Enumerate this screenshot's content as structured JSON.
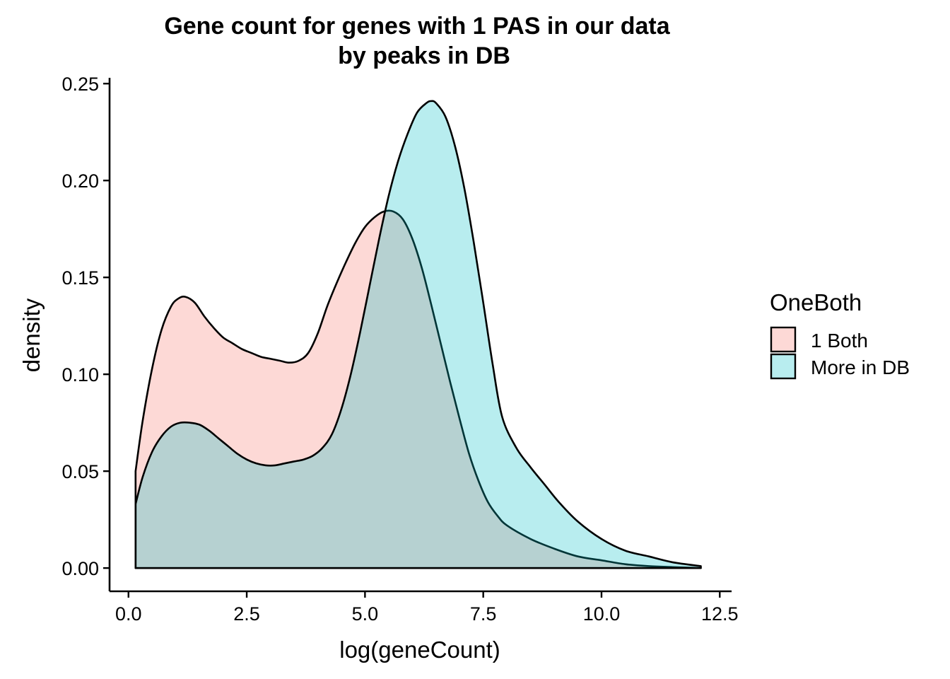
{
  "chart_data": {
    "type": "area",
    "title_lines": [
      "Gene count for genes with 1 PAS in our data",
      "by peaks in DB"
    ],
    "xlabel": "log(geneCount)",
    "ylabel": "density",
    "xlim": [
      -0.4,
      12.75
    ],
    "ylim": [
      -0.012,
      0.253
    ],
    "x_ticks": [
      0.0,
      2.5,
      5.0,
      7.5,
      10.0,
      12.5
    ],
    "x_tick_labels": [
      "0.0",
      "2.5",
      "5.0",
      "7.5",
      "10.0",
      "12.5"
    ],
    "y_ticks": [
      0.0,
      0.05,
      0.1,
      0.15,
      0.2,
      0.25
    ],
    "y_tick_labels": [
      "0.00",
      "0.05",
      "0.10",
      "0.15",
      "0.20",
      "0.25"
    ],
    "grid": false,
    "legend": {
      "title": "OneBoth",
      "position": "right"
    },
    "series": [
      {
        "name": "1 Both",
        "color": "#F8766D",
        "x": [
          0.15,
          0.3,
          0.5,
          0.7,
          0.9,
          1.05,
          1.2,
          1.4,
          1.6,
          1.8,
          2.0,
          2.2,
          2.4,
          2.6,
          2.8,
          3.0,
          3.2,
          3.4,
          3.6,
          3.8,
          4.0,
          4.2,
          4.4,
          4.6,
          4.8,
          5.0,
          5.2,
          5.4,
          5.6,
          5.8,
          6.0,
          6.2,
          6.4,
          6.6,
          6.8,
          7.0,
          7.2,
          7.4,
          7.6,
          7.8,
          8.0,
          8.5,
          9.0,
          9.5,
          10.0,
          10.5,
          11.0,
          11.5,
          12.1
        ],
        "y": [
          0.05,
          0.076,
          0.103,
          0.123,
          0.135,
          0.139,
          0.14,
          0.137,
          0.13,
          0.124,
          0.119,
          0.116,
          0.113,
          0.111,
          0.109,
          0.108,
          0.107,
          0.106,
          0.107,
          0.111,
          0.121,
          0.135,
          0.147,
          0.158,
          0.168,
          0.176,
          0.181,
          0.184,
          0.184,
          0.18,
          0.17,
          0.155,
          0.136,
          0.116,
          0.096,
          0.077,
          0.059,
          0.045,
          0.034,
          0.027,
          0.022,
          0.015,
          0.01,
          0.006,
          0.004,
          0.002,
          0.001,
          0.0005,
          0.0
        ]
      },
      {
        "name": "More in DB",
        "color": "#00BFC4",
        "x": [
          0.15,
          0.3,
          0.5,
          0.7,
          0.9,
          1.1,
          1.3,
          1.5,
          1.7,
          1.9,
          2.1,
          2.3,
          2.5,
          2.7,
          2.9,
          3.1,
          3.3,
          3.5,
          3.7,
          3.9,
          4.1,
          4.3,
          4.5,
          4.7,
          4.9,
          5.1,
          5.3,
          5.5,
          5.7,
          5.9,
          6.1,
          6.3,
          6.4,
          6.5,
          6.7,
          6.9,
          7.1,
          7.3,
          7.5,
          7.7,
          7.9,
          8.2,
          8.5,
          8.8,
          9.1,
          9.5,
          10.0,
          10.5,
          11.0,
          11.5,
          12.1
        ],
        "y": [
          0.033,
          0.047,
          0.06,
          0.068,
          0.073,
          0.075,
          0.075,
          0.074,
          0.071,
          0.067,
          0.063,
          0.059,
          0.056,
          0.054,
          0.053,
          0.053,
          0.054,
          0.055,
          0.056,
          0.058,
          0.062,
          0.069,
          0.082,
          0.1,
          0.122,
          0.146,
          0.17,
          0.192,
          0.21,
          0.224,
          0.235,
          0.24,
          0.241,
          0.24,
          0.233,
          0.218,
          0.196,
          0.168,
          0.137,
          0.105,
          0.078,
          0.062,
          0.052,
          0.043,
          0.034,
          0.024,
          0.015,
          0.009,
          0.006,
          0.003,
          0.001
        ]
      }
    ]
  }
}
